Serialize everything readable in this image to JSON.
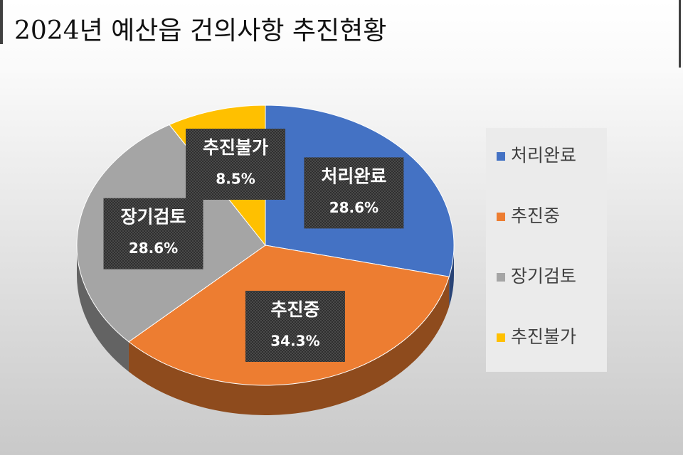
{
  "chart_data": {
    "type": "pie",
    "title": "2024년 예산읍 건의사항 추진현황",
    "categories": [
      "처리완료",
      "추진중",
      "장기검토",
      "추진불가"
    ],
    "values": [
      28.6,
      34.3,
      28.6,
      8.5
    ],
    "value_labels": [
      "28.6%",
      "34.3%",
      "28.6%",
      "8.5%"
    ],
    "colors": [
      "#4472c4",
      "#ed7d31",
      "#a5a5a5",
      "#ffc000"
    ],
    "legend": "right"
  }
}
